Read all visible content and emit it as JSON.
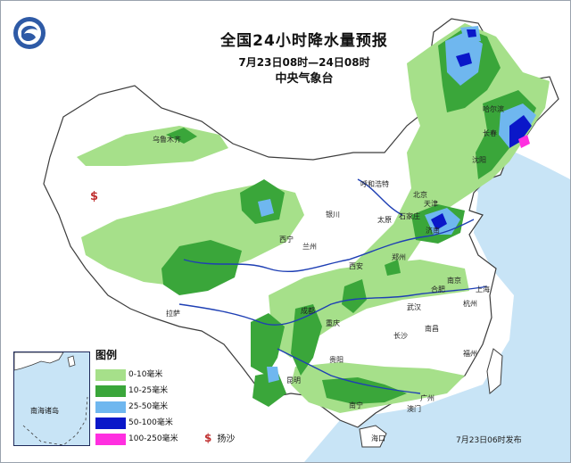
{
  "map": {
    "title": "全国24小时降水量预报",
    "time_range": "7月23日08时—24日08时",
    "issuer": "中央气象台",
    "release": "7月23日06时发布"
  },
  "legend": {
    "title": "图例",
    "items": [
      {
        "label": "0-10毫米",
        "color": "#a6e08a"
      },
      {
        "label": "10-25毫米",
        "color": "#3aa63a"
      },
      {
        "label": "25-50毫米",
        "color": "#6fb7ef"
      },
      {
        "label": "50-100毫米",
        "color": "#0a17c9"
      },
      {
        "label": "100-250毫米",
        "color": "#ff2fe0"
      }
    ],
    "sand_symbol": "$",
    "sand_label": "扬沙"
  },
  "inset": {
    "label": "南海诸岛"
  },
  "cities": [
    "乌鲁木齐",
    "拉萨",
    "西宁",
    "兰州",
    "成都",
    "重庆",
    "贵阳",
    "昆明",
    "南宁",
    "海口",
    "广州",
    "澳门",
    "福州",
    "南昌",
    "长沙",
    "武汉",
    "杭州",
    "上海",
    "合肥",
    "南京",
    "济南",
    "郑州",
    "西安",
    "太原",
    "石家庄",
    "北京",
    "天津",
    "沈阳",
    "长春",
    "哈尔滨",
    "呼和浩特",
    "银川"
  ],
  "colors": {
    "sea": "#c8e4f6",
    "land": "#ffffff",
    "border": "#3c3c3c",
    "river": "#1e3fb4",
    "sand": "#c03030"
  }
}
